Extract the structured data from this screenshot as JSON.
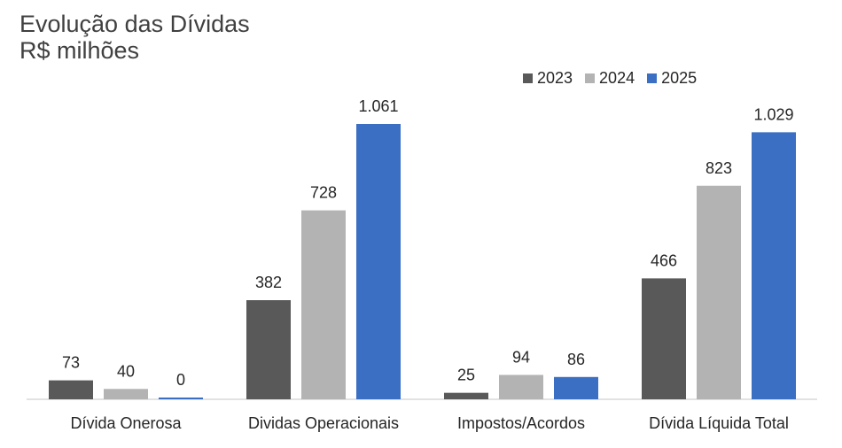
{
  "header": {
    "title": "Evolução das Dívidas",
    "subtitle": "R$ milhões"
  },
  "chart_data": {
    "type": "bar",
    "categories": [
      "Dívida Onerosa",
      "Dividas Operacionais",
      "Impostos/Acordos",
      "Dívida Líquida Total"
    ],
    "series": [
      {
        "name": "2023",
        "color": "#595959",
        "values": [
          73,
          382,
          25,
          466
        ],
        "labels": [
          "73",
          "382",
          "25",
          "466"
        ]
      },
      {
        "name": "2024",
        "color": "#b3b3b3",
        "values": [
          40,
          728,
          94,
          823
        ],
        "labels": [
          "40",
          "728",
          "94",
          "823"
        ]
      },
      {
        "name": "2025",
        "color": "#3a6fc4",
        "values": [
          0,
          1061,
          86,
          1029
        ],
        "labels": [
          "0",
          "1.061",
          "86",
          "1.029"
        ]
      }
    ],
    "legend_position": "top-right",
    "grid": false,
    "ylim": [
      0,
      1061
    ]
  }
}
